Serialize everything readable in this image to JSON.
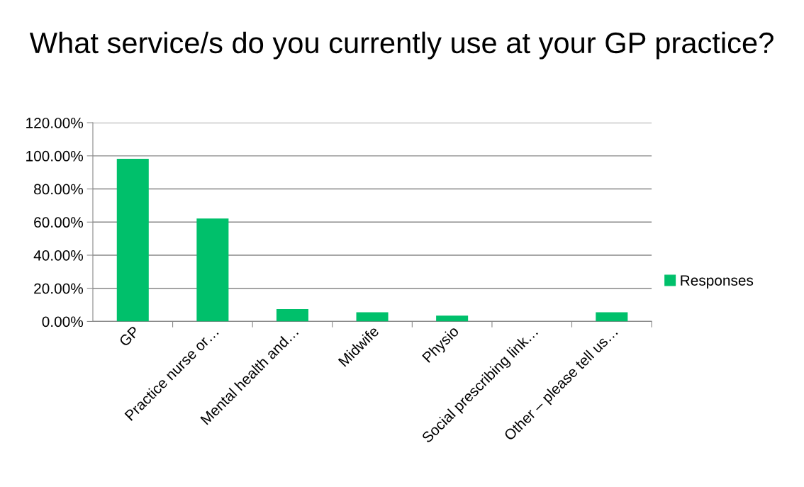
{
  "chart_data": {
    "type": "bar",
    "title": "What service/s do you currently use at your GP practice?",
    "categories": [
      "GP",
      "Practice nurse or…",
      "Mental health and…",
      "Midwife",
      "Physio",
      "Social prescribing link…",
      "Other – please tell us…"
    ],
    "series": [
      {
        "name": "Responses",
        "color": "#00c06b",
        "values": [
          98.2,
          62.1,
          7.5,
          5.5,
          3.5,
          0,
          5.5
        ]
      }
    ],
    "ylim": [
      0,
      120
    ],
    "yticks": [
      {
        "value": 0,
        "label": "0.00%"
      },
      {
        "value": 20,
        "label": "20.00%"
      },
      {
        "value": 40,
        "label": "40.00%"
      },
      {
        "value": 60,
        "label": "60.00%"
      },
      {
        "value": 80,
        "label": "80.00%"
      },
      {
        "value": 100,
        "label": "100.00%"
      },
      {
        "value": 120,
        "label": "120.00%"
      }
    ],
    "grid": "y",
    "legend": "right"
  }
}
